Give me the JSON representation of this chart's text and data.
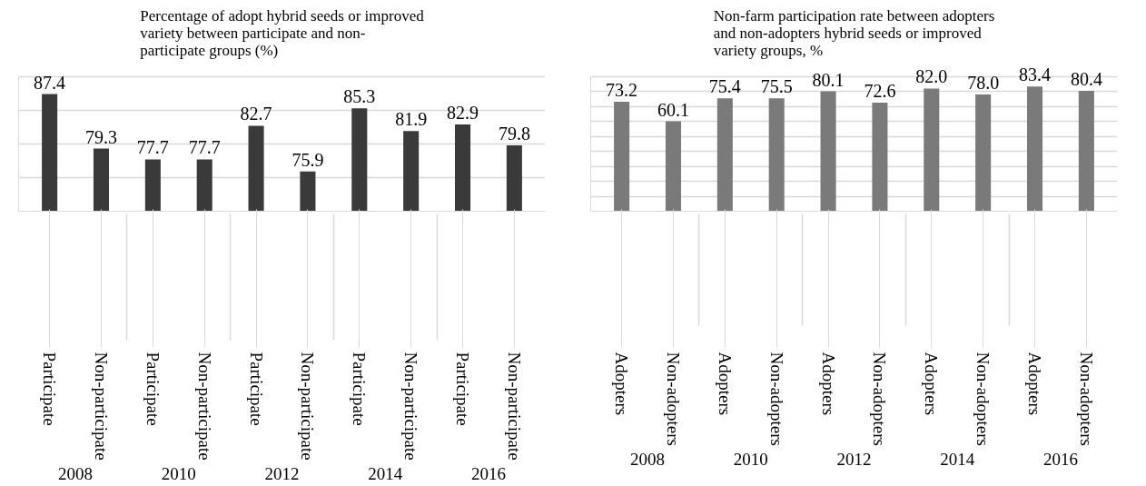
{
  "chart_data": [
    {
      "type": "bar",
      "title": "Percentage of adopt hybrid seeds or improved variety between participate and non-participate groups (%)",
      "categories": [
        "Participate",
        "Non-participate",
        "Participate",
        "Non-participate",
        "Participate",
        "Non-participate",
        "Participate",
        "Non-participate",
        "Participate",
        "Non-participate"
      ],
      "annotations": [
        "2008",
        "2010",
        "2012",
        "2014",
        "2016"
      ],
      "values": [
        87.4,
        79.3,
        77.7,
        77.7,
        82.7,
        75.9,
        85.3,
        81.9,
        82.9,
        79.8
      ],
      "color": "#3a3a3a",
      "ylim": [
        70,
        90
      ],
      "yticks": [
        {
          "value": 70,
          "label": null
        },
        {
          "value": 75,
          "label": null
        },
        {
          "value": 80,
          "label": null
        },
        {
          "value": 85,
          "label": null
        },
        {
          "value": 90,
          "label": null
        }
      ],
      "grid": "y",
      "tick_labels": "x",
      "data_labels": true
    },
    {
      "type": "bar",
      "title": "Non-farm participation rate between adopters and non-adopters hybrid seeds or improved variety groups, %",
      "categories": [
        "Adopters",
        "Non-adopters",
        "Adopters",
        "Non-adopters",
        "Adopters",
        "Non-adopters",
        "Adopters",
        "Non-adopters",
        "Adopters",
        "Non-adopters"
      ],
      "annotations": [
        "2008",
        "2010",
        "2012",
        "2014",
        "2016"
      ],
      "values": [
        73.2,
        60.1,
        75.4,
        75.5,
        80.1,
        72.6,
        82.0,
        78.0,
        83.4,
        80.4
      ],
      "color": "#7a7a7a",
      "value_labels": [
        "73.2",
        "60.1",
        "75.4",
        "75.5",
        "80.1",
        "72.6",
        "82.0",
        "78.0",
        "83.4",
        "80.4"
      ],
      "ylim": [
        0,
        90
      ],
      "yticks": [
        {
          "value": 0,
          "label": null
        },
        {
          "value": 10,
          "label": null
        },
        {
          "value": 20,
          "label": null
        },
        {
          "value": 30,
          "label": null
        },
        {
          "value": 40,
          "label": null
        },
        {
          "value": 50,
          "label": null
        },
        {
          "value": 60,
          "label": null
        },
        {
          "value": 70,
          "label": null
        },
        {
          "value": 80,
          "label": null
        },
        {
          "value": 90,
          "label": null
        }
      ],
      "grid": "y",
      "tick_labels": "x",
      "data_labels": true
    }
  ]
}
